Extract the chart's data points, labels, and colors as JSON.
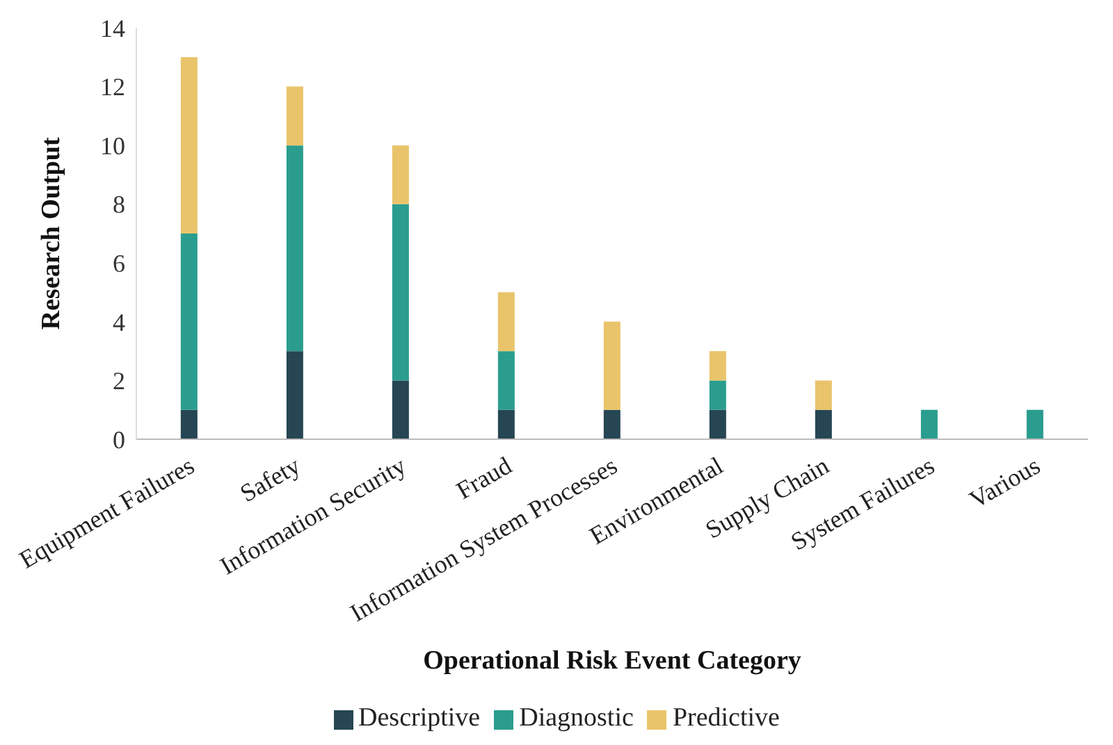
{
  "chart_data": {
    "type": "bar",
    "stacked": true,
    "xlabel": "Operational Risk Event Category",
    "ylabel": "Research Output",
    "categories": [
      "Equipment Failures",
      "Safety",
      "Information Security",
      "Fraud",
      "Information System Processes",
      "Environmental",
      "Supply Chain",
      "System Failures",
      "Various"
    ],
    "series": [
      {
        "name": "Descriptive",
        "color": "#264653",
        "values": [
          1,
          3,
          2,
          1,
          1,
          1,
          1,
          0,
          0
        ]
      },
      {
        "name": "Diagnostic",
        "color": "#2a9d8f",
        "values": [
          6,
          7,
          6,
          2,
          0,
          1,
          0,
          1,
          1
        ]
      },
      {
        "name": "Predictive",
        "color": "#e9c46a",
        "values": [
          6,
          2,
          2,
          2,
          3,
          1,
          1,
          0,
          0
        ]
      }
    ],
    "ylim": [
      0,
      14
    ],
    "yticks": [
      0,
      2,
      4,
      6,
      8,
      10,
      12,
      14
    ],
    "grid": false,
    "legend": "bottom"
  }
}
